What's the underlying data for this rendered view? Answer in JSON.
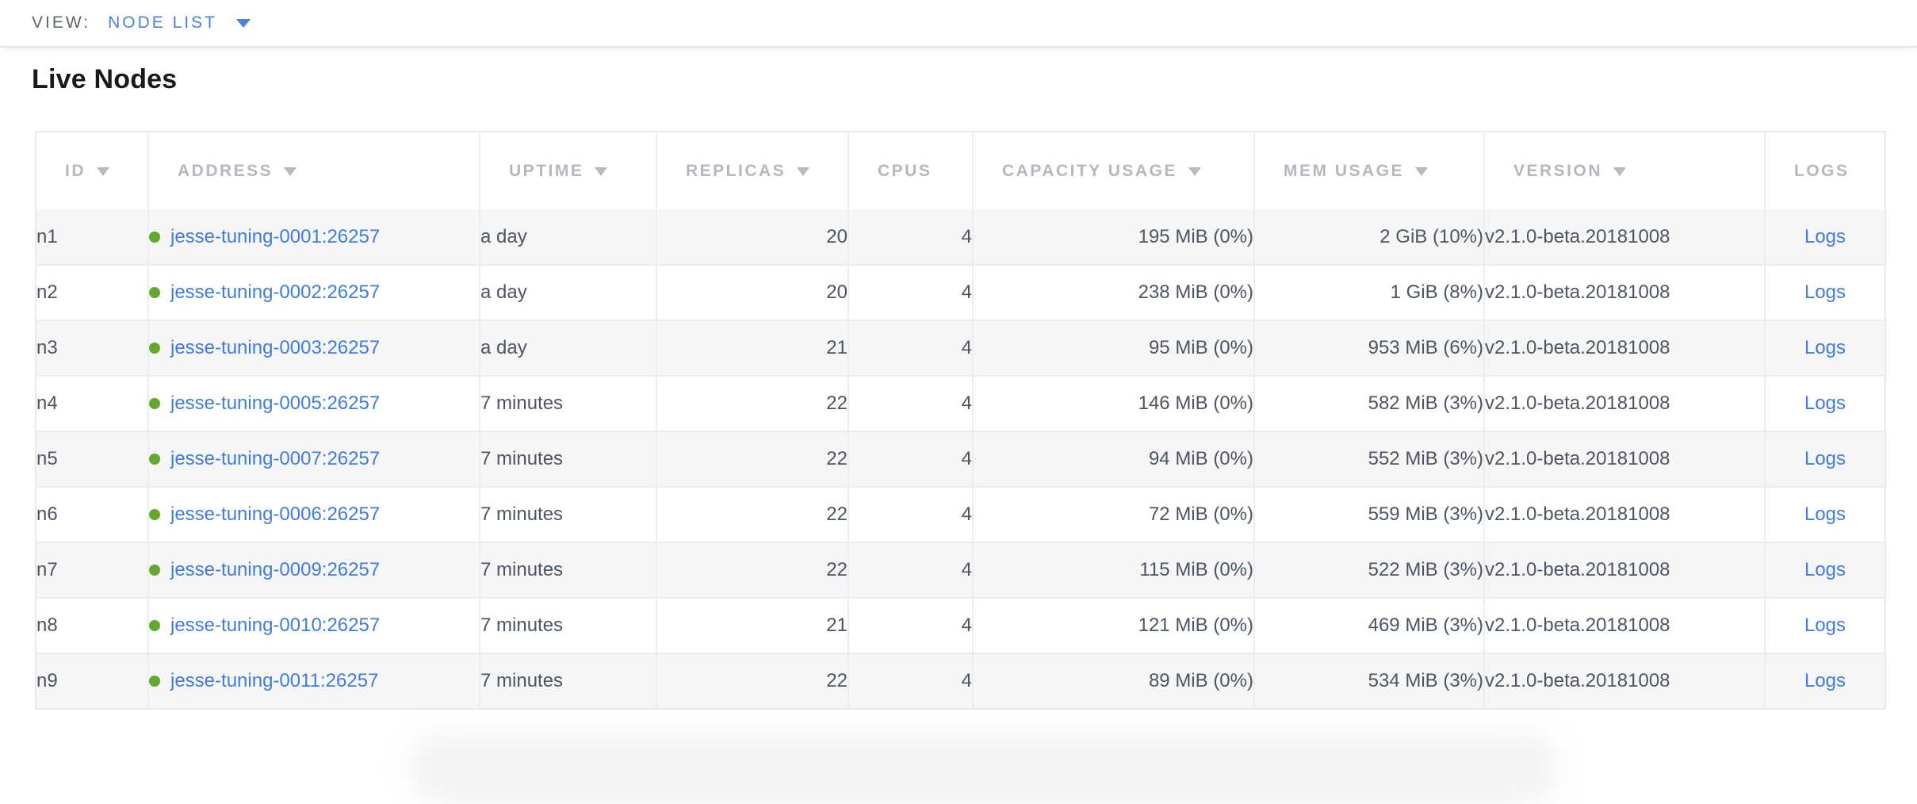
{
  "view_bar": {
    "label": "VIEW:",
    "selected": "NODE LIST"
  },
  "page": {
    "title": "Live Nodes"
  },
  "colors": {
    "link_blue": "#3e7ce1",
    "healthy_green": "#62a82e",
    "header_gray": "#b4b8bd"
  },
  "table": {
    "columns": [
      {
        "key": "id",
        "label": "ID",
        "sortable": true
      },
      {
        "key": "address",
        "label": "ADDRESS",
        "sortable": true
      },
      {
        "key": "uptime",
        "label": "UPTIME",
        "sortable": true
      },
      {
        "key": "replicas",
        "label": "REPLICAS",
        "sortable": true
      },
      {
        "key": "cpus",
        "label": "CPUS",
        "sortable": false
      },
      {
        "key": "capacity",
        "label": "CAPACITY USAGE",
        "sortable": true
      },
      {
        "key": "mem",
        "label": "MEM USAGE",
        "sortable": true
      },
      {
        "key": "version",
        "label": "VERSION",
        "sortable": true
      },
      {
        "key": "logs",
        "label": "LOGS",
        "sortable": false
      }
    ],
    "rows": [
      {
        "id": "n1",
        "status": "healthy",
        "address": "jesse-tuning-0001:26257",
        "uptime": "a day",
        "replicas": "20",
        "cpus": "4",
        "capacity": "195 MiB (0%)",
        "mem": "2 GiB (10%)",
        "version": "v2.1.0-beta.20181008",
        "logs": "Logs"
      },
      {
        "id": "n2",
        "status": "healthy",
        "address": "jesse-tuning-0002:26257",
        "uptime": "a day",
        "replicas": "20",
        "cpus": "4",
        "capacity": "238 MiB (0%)",
        "mem": "1 GiB (8%)",
        "version": "v2.1.0-beta.20181008",
        "logs": "Logs"
      },
      {
        "id": "n3",
        "status": "healthy",
        "address": "jesse-tuning-0003:26257",
        "uptime": "a day",
        "replicas": "21",
        "cpus": "4",
        "capacity": "95 MiB (0%)",
        "mem": "953 MiB (6%)",
        "version": "v2.1.0-beta.20181008",
        "logs": "Logs"
      },
      {
        "id": "n4",
        "status": "healthy",
        "address": "jesse-tuning-0005:26257",
        "uptime": "7 minutes",
        "replicas": "22",
        "cpus": "4",
        "capacity": "146 MiB (0%)",
        "mem": "582 MiB (3%)",
        "version": "v2.1.0-beta.20181008",
        "logs": "Logs"
      },
      {
        "id": "n5",
        "status": "healthy",
        "address": "jesse-tuning-0007:26257",
        "uptime": "7 minutes",
        "replicas": "22",
        "cpus": "4",
        "capacity": "94 MiB (0%)",
        "mem": "552 MiB (3%)",
        "version": "v2.1.0-beta.20181008",
        "logs": "Logs"
      },
      {
        "id": "n6",
        "status": "healthy",
        "address": "jesse-tuning-0006:26257",
        "uptime": "7 minutes",
        "replicas": "22",
        "cpus": "4",
        "capacity": "72 MiB (0%)",
        "mem": "559 MiB (3%)",
        "version": "v2.1.0-beta.20181008",
        "logs": "Logs"
      },
      {
        "id": "n7",
        "status": "healthy",
        "address": "jesse-tuning-0009:26257",
        "uptime": "7 minutes",
        "replicas": "22",
        "cpus": "4",
        "capacity": "115 MiB (0%)",
        "mem": "522 MiB (3%)",
        "version": "v2.1.0-beta.20181008",
        "logs": "Logs"
      },
      {
        "id": "n8",
        "status": "healthy",
        "address": "jesse-tuning-0010:26257",
        "uptime": "7 minutes",
        "replicas": "21",
        "cpus": "4",
        "capacity": "121 MiB (0%)",
        "mem": "469 MiB (3%)",
        "version": "v2.1.0-beta.20181008",
        "logs": "Logs"
      },
      {
        "id": "n9",
        "status": "healthy",
        "address": "jesse-tuning-0011:26257",
        "uptime": "7 minutes",
        "replicas": "22",
        "cpus": "4",
        "capacity": "89 MiB (0%)",
        "mem": "534 MiB (3%)",
        "version": "v2.1.0-beta.20181008",
        "logs": "Logs"
      }
    ]
  }
}
